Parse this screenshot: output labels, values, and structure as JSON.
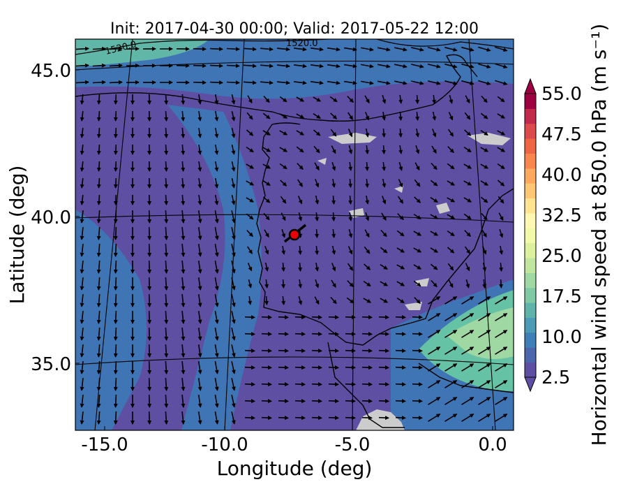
{
  "title": "Init: 2017-04-30 00:00; Valid: 2017-05-22 12:00",
  "xlabel": "Longitude (deg)",
  "ylabel": "Latitude (deg)",
  "colorbar_label": "Horizontal wind speed at 850.0 hPa (m s⁻¹)",
  "x_ticks": [
    "-15.0",
    "-10.0",
    "-5.0",
    "0.0"
  ],
  "y_ticks": [
    "45.0",
    "40.0",
    "35.0"
  ],
  "colorbar_ticks": [
    "55.0",
    "47.5",
    "40.0",
    "32.5",
    "25.0",
    "17.5",
    "10.0",
    "2.5"
  ],
  "contour_labels": [
    "1520.0",
    "1520.0"
  ],
  "marker": {
    "color": "#e8000b"
  },
  "colors": {
    "land_purple": "#5e4fa2",
    "sea_blue": "#3f75b4",
    "teal": "#66c2a5",
    "missing_gray": "#cccccc"
  },
  "colorbar_colors": [
    "#5e4fa2",
    "#4b66ad",
    "#3f7fb8",
    "#4a9bb6",
    "#5fb4aa",
    "#7fc9a4",
    "#a0d8a3",
    "#c0e6a0",
    "#dcf09d",
    "#f2f9a8",
    "#fff7b2",
    "#fee390",
    "#fdc776",
    "#fca85e",
    "#f8864e",
    "#ef6645",
    "#dc4a4c",
    "#c2294a",
    "#9e0142"
  ]
}
